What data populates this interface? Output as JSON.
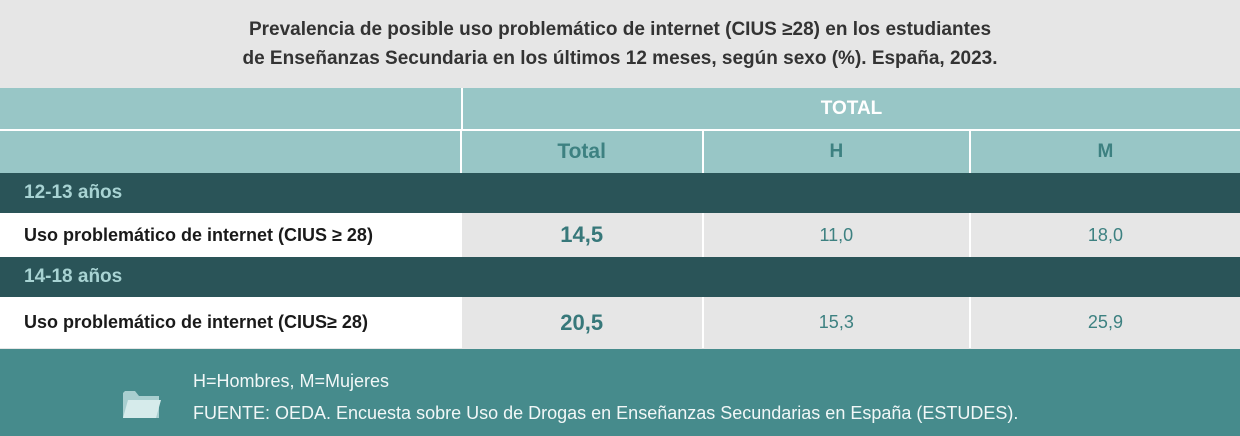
{
  "title": {
    "line1": "Prevalencia de posible uso problemático de internet (CIUS ≥28) en los estudiantes",
    "line2": "de Enseñanzas Secundaria en los últimos 12 meses, según sexo (%). España, 2023."
  },
  "header": {
    "group_label": "TOTAL",
    "columns": [
      "Total",
      "H",
      "M"
    ]
  },
  "chart_data": {
    "type": "table",
    "title": "Prevalencia de posible uso problemático de internet (CIUS ≥28) en los estudiantes de Enseñanzas Secundaria en los últimos 12 meses, según sexo (%). España, 2023.",
    "columns": [
      "Total",
      "H",
      "M"
    ],
    "groups": [
      {
        "name": "12-13 años",
        "rows": [
          {
            "label": "Uso problemático de internet (CIUS ≥ 28)",
            "values": [
              "14,5",
              "11,0",
              "18,0"
            ]
          }
        ]
      },
      {
        "name": "14-18 años",
        "rows": [
          {
            "label": "Uso problemático de internet (CIUS≥ 28)",
            "values": [
              "20,5",
              "15,3",
              "25,9"
            ]
          }
        ]
      }
    ]
  },
  "footer": {
    "note": "H=Hombres, M=Mujeres",
    "source": "FUENTE: OEDA. Encuesta sobre Uso de Drogas en Enseñanzas Secundarias en España (ESTUDES)."
  },
  "colors": {
    "header_bg": "#98c6c6",
    "group_bg": "#2a5458",
    "footer_bg": "#468b8c",
    "accent_text": "#3d8181"
  },
  "icons": {
    "footer": "folder-icon"
  }
}
